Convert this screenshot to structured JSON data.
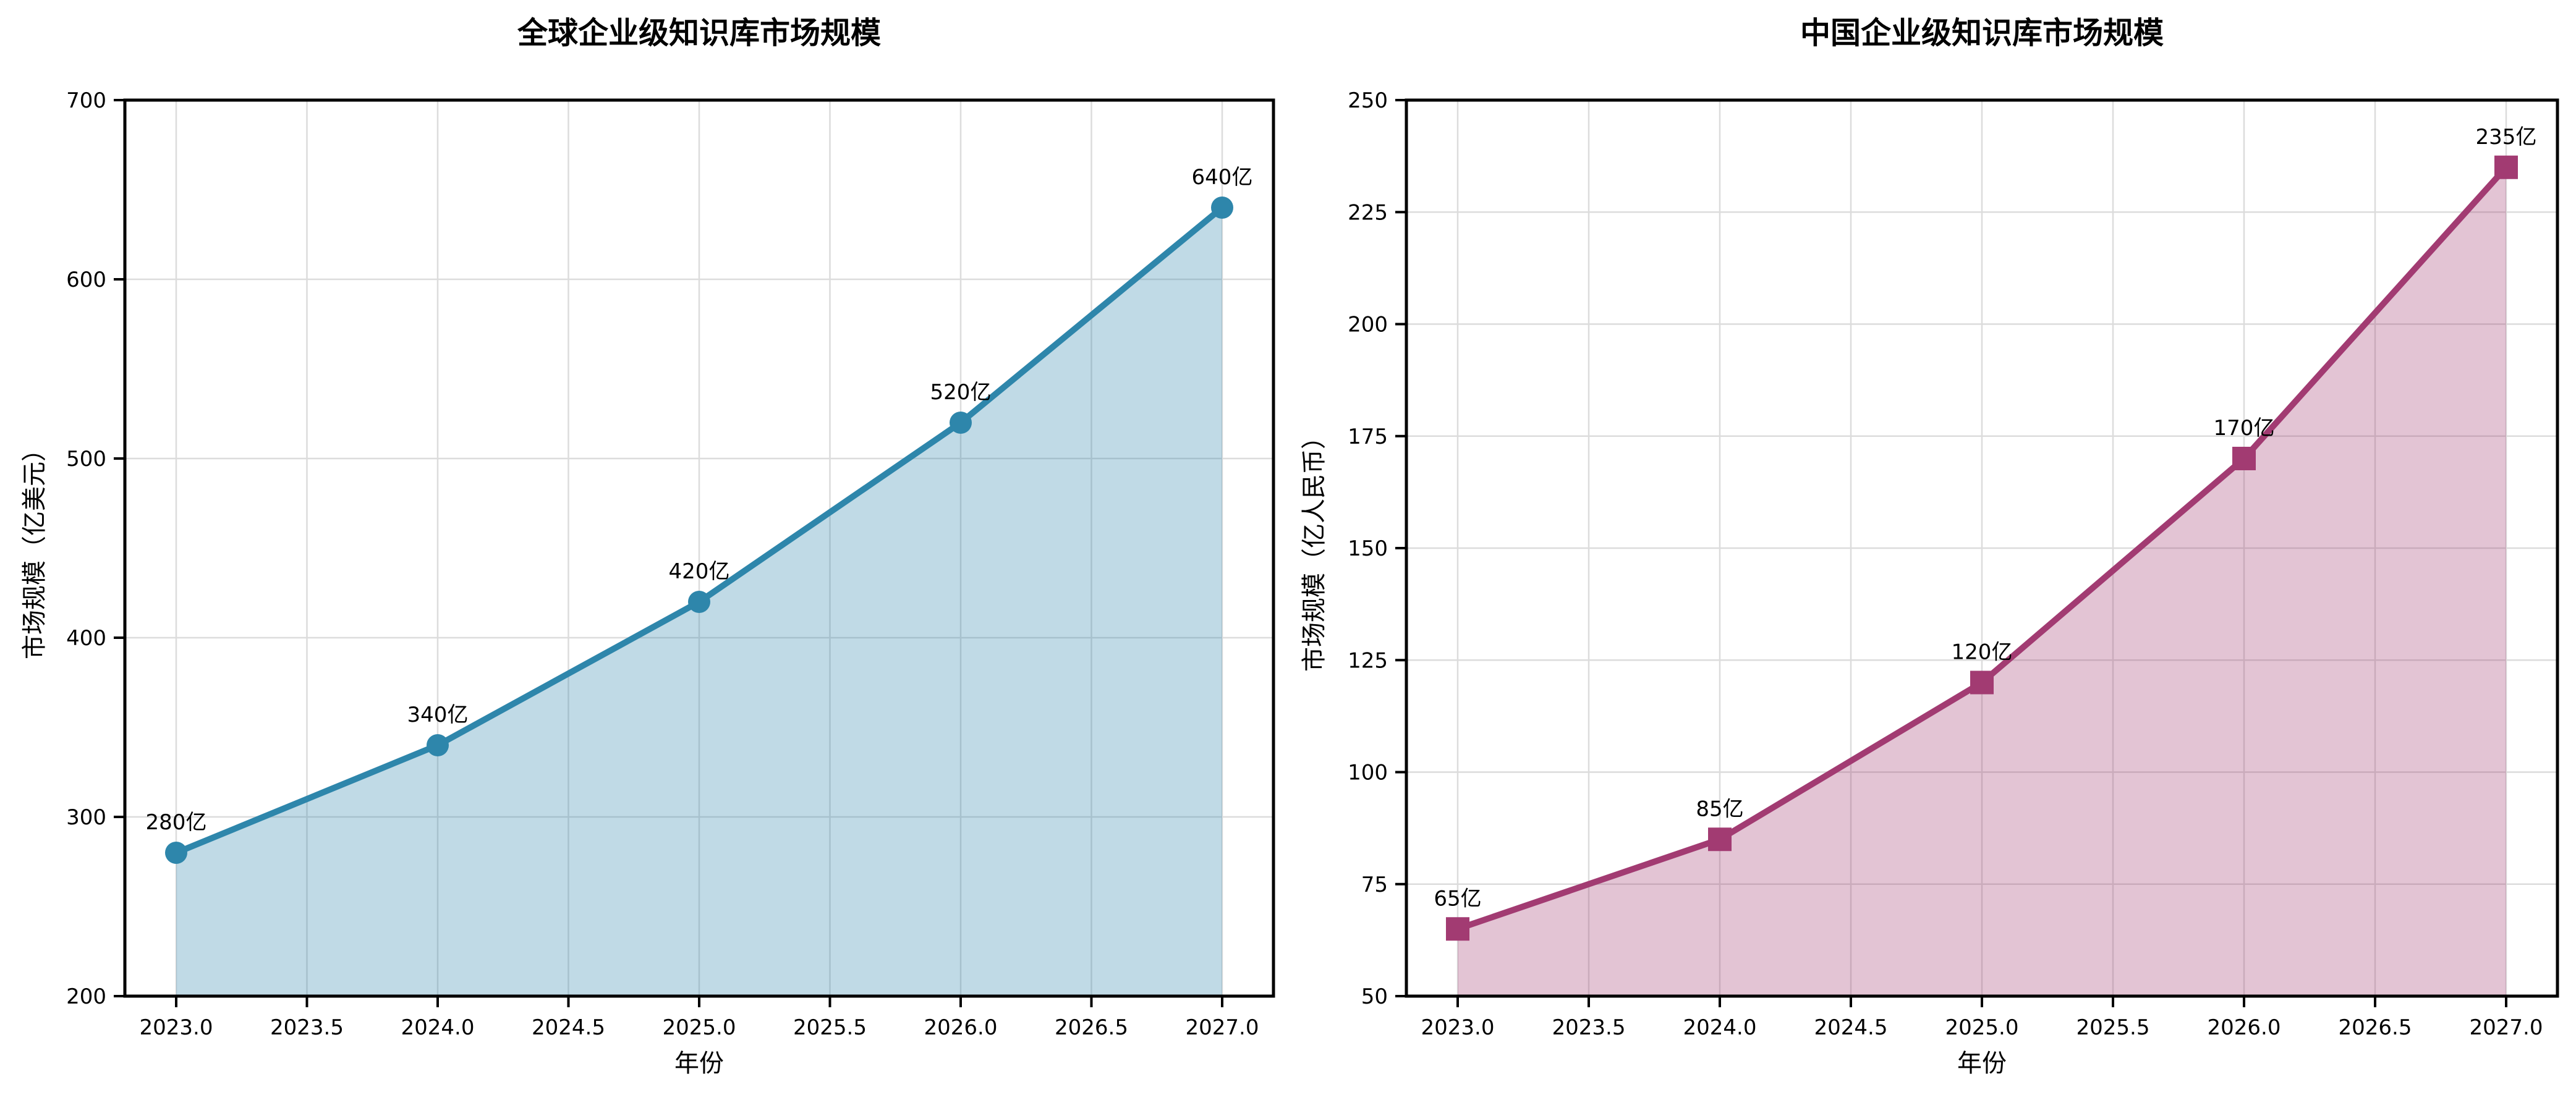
{
  "page": {
    "background": "#ffffff"
  },
  "chart_data": [
    {
      "type": "area",
      "title": "全球企业级知识库市场规模",
      "xlabel": "年份",
      "ylabel": "市场规模（亿美元）",
      "x": [
        2023,
        2024,
        2025,
        2026,
        2027
      ],
      "values": [
        280,
        340,
        420,
        520,
        640
      ],
      "point_labels": [
        "280亿",
        "340亿",
        "420亿",
        "520亿",
        "640亿"
      ],
      "unit_suffix": "亿",
      "xlim": [
        2023,
        2027
      ],
      "ylim": [
        200,
        700
      ],
      "yticks": [
        200,
        300,
        400,
        500,
        600,
        700
      ],
      "ytick_labels": [
        "200",
        "300",
        "400",
        "500",
        "600",
        "700"
      ],
      "xticks": [
        2023,
        2023.5,
        2024,
        2024.5,
        2025,
        2025.5,
        2026,
        2026.5,
        2027
      ],
      "xtick_labels": [
        "2023.0",
        "2023.5",
        "2024.0",
        "2024.5",
        "2025.0",
        "2025.5",
        "2026.0",
        "2026.5",
        "2027.0"
      ],
      "line_color": "#2E86AB",
      "fill_color": "rgba(46,134,171,0.30)",
      "marker": "circle",
      "grid": true,
      "legend": null
    },
    {
      "type": "area",
      "title": "中国企业级知识库市场规模",
      "xlabel": "年份",
      "ylabel": "市场规模（亿人民币）",
      "x": [
        2023,
        2024,
        2025,
        2026,
        2027
      ],
      "values": [
        65,
        85,
        120,
        170,
        235
      ],
      "point_labels": [
        "65亿",
        "85亿",
        "120亿",
        "170亿",
        "235亿"
      ],
      "unit_suffix": "亿",
      "xlim": [
        2023,
        2027
      ],
      "ylim": [
        50,
        250
      ],
      "yticks": [
        50,
        75,
        100,
        125,
        150,
        175,
        200,
        225,
        250
      ],
      "ytick_labels": [
        "50",
        "75",
        "100",
        "125",
        "150",
        "175",
        "200",
        "225",
        "250"
      ],
      "xticks": [
        2023,
        2023.5,
        2024,
        2024.5,
        2025,
        2025.5,
        2026,
        2026.5,
        2027
      ],
      "xtick_labels": [
        "2023.0",
        "2023.5",
        "2024.0",
        "2024.5",
        "2025.0",
        "2025.5",
        "2026.0",
        "2026.5",
        "2027.0"
      ],
      "line_color": "#A23B72",
      "fill_color": "rgba(162,59,114,0.30)",
      "marker": "square",
      "grid": true,
      "legend": null
    }
  ]
}
